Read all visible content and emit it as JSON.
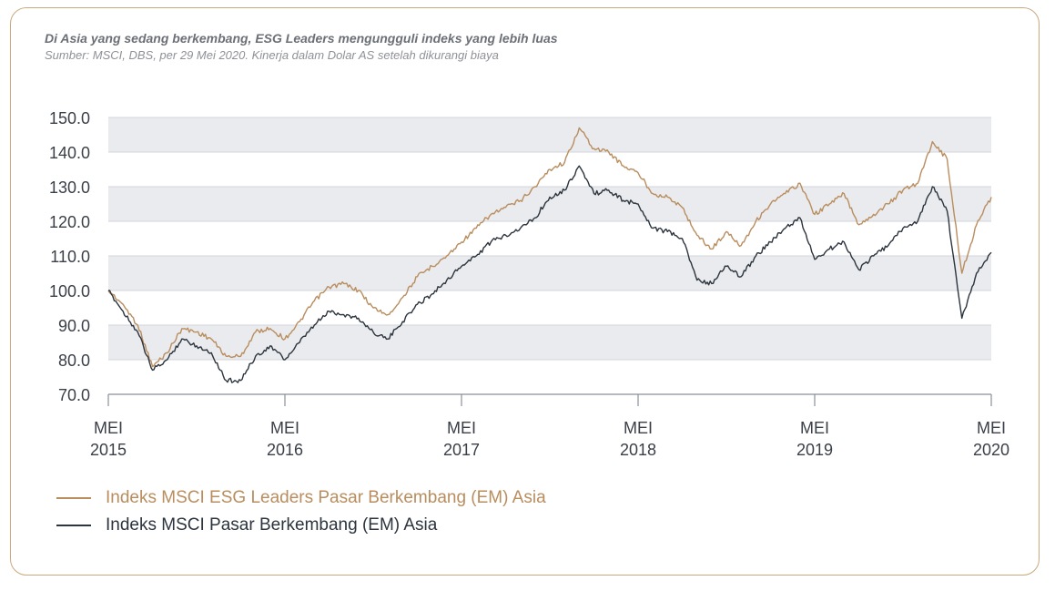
{
  "chart_data": {
    "type": "line",
    "title": "Di Asia yang sedang berkembang, ESG Leaders mengungguli indeks yang lebih luas",
    "subtitle": "Sumber: MSCI, DBS, per 29 Mei 2020. Kinerja dalam Dolar AS setelah dikurangi biaya",
    "xlabel": "",
    "ylabel": "",
    "x_range": [
      "2015-05",
      "2020-05"
    ],
    "ylim": [
      70,
      150
    ],
    "yticks": [
      "150.0",
      "140.0",
      "130.0",
      "120.0",
      "110.0",
      "100.0",
      "90.0",
      "80.0",
      "70.0"
    ],
    "xticks": [
      {
        "month": "MEI",
        "year": "2015"
      },
      {
        "month": "MEI",
        "year": "2016"
      },
      {
        "month": "MEI",
        "year": "2017"
      },
      {
        "month": "MEI",
        "year": "2018"
      },
      {
        "month": "MEI",
        "year": "2019"
      },
      {
        "month": "MEI",
        "year": "2020"
      }
    ],
    "grid": "horizontal bands",
    "legend_position": "bottom-left",
    "series": [
      {
        "name": "Indeks MSCI ESG Leaders Pasar Berkembang (EM) Asia",
        "color": "#b98d5e",
        "points": [
          [
            "2015-05",
            100
          ],
          [
            "2015-06",
            96
          ],
          [
            "2015-07",
            90
          ],
          [
            "2015-08",
            78
          ],
          [
            "2015-09",
            82
          ],
          [
            "2015-10",
            89
          ],
          [
            "2015-11",
            88
          ],
          [
            "2015-12",
            86
          ],
          [
            "2016-01",
            81
          ],
          [
            "2016-02",
            81
          ],
          [
            "2016-03",
            88
          ],
          [
            "2016-04",
            89
          ],
          [
            "2016-05",
            86
          ],
          [
            "2016-06",
            91
          ],
          [
            "2016-07",
            97
          ],
          [
            "2016-08",
            101
          ],
          [
            "2016-09",
            102
          ],
          [
            "2016-10",
            100
          ],
          [
            "2016-11",
            95
          ],
          [
            "2016-12",
            93
          ],
          [
            "2017-01",
            98
          ],
          [
            "2017-02",
            104
          ],
          [
            "2017-03",
            107
          ],
          [
            "2017-04",
            110
          ],
          [
            "2017-05",
            114
          ],
          [
            "2017-06",
            118
          ],
          [
            "2017-07",
            122
          ],
          [
            "2017-08",
            124
          ],
          [
            "2017-09",
            126
          ],
          [
            "2017-10",
            130
          ],
          [
            "2017-11",
            135
          ],
          [
            "2017-12",
            137
          ],
          [
            "2018-01",
            147
          ],
          [
            "2018-02",
            141
          ],
          [
            "2018-03",
            140
          ],
          [
            "2018-04",
            136
          ],
          [
            "2018-05",
            134
          ],
          [
            "2018-06",
            128
          ],
          [
            "2018-07",
            127
          ],
          [
            "2018-08",
            124
          ],
          [
            "2018-09",
            116
          ],
          [
            "2018-10",
            112
          ],
          [
            "2018-11",
            117
          ],
          [
            "2018-12",
            113
          ],
          [
            "2019-01",
            120
          ],
          [
            "2019-02",
            125
          ],
          [
            "2019-03",
            128
          ],
          [
            "2019-04",
            131
          ],
          [
            "2019-05",
            122
          ],
          [
            "2019-06",
            125
          ],
          [
            "2019-07",
            128
          ],
          [
            "2019-08",
            119
          ],
          [
            "2019-09",
            122
          ],
          [
            "2019-10",
            125
          ],
          [
            "2019-11",
            129
          ],
          [
            "2019-12",
            131
          ],
          [
            "2020-01",
            143
          ],
          [
            "2020-02",
            138
          ],
          [
            "2020-03",
            105
          ],
          [
            "2020-04",
            119
          ],
          [
            "2020-05",
            127
          ]
        ]
      },
      {
        "name": "Indeks MSCI Pasar Berkembang (EM) Asia",
        "color": "#2c343d",
        "points": [
          [
            "2015-05",
            100
          ],
          [
            "2015-06",
            94
          ],
          [
            "2015-07",
            88
          ],
          [
            "2015-08",
            77
          ],
          [
            "2015-09",
            80
          ],
          [
            "2015-10",
            86
          ],
          [
            "2015-11",
            84
          ],
          [
            "2015-12",
            82
          ],
          [
            "2016-01",
            74
          ],
          [
            "2016-02",
            74
          ],
          [
            "2016-03",
            81
          ],
          [
            "2016-04",
            84
          ],
          [
            "2016-05",
            80
          ],
          [
            "2016-06",
            85
          ],
          [
            "2016-07",
            90
          ],
          [
            "2016-08",
            94
          ],
          [
            "2016-09",
            93
          ],
          [
            "2016-10",
            92
          ],
          [
            "2016-11",
            88
          ],
          [
            "2016-12",
            86
          ],
          [
            "2017-01",
            91
          ],
          [
            "2017-02",
            96
          ],
          [
            "2017-03",
            99
          ],
          [
            "2017-04",
            103
          ],
          [
            "2017-05",
            107
          ],
          [
            "2017-06",
            110
          ],
          [
            "2017-07",
            114
          ],
          [
            "2017-08",
            116
          ],
          [
            "2017-09",
            118
          ],
          [
            "2017-10",
            121
          ],
          [
            "2017-11",
            127
          ],
          [
            "2017-12",
            129
          ],
          [
            "2018-01",
            136
          ],
          [
            "2018-02",
            128
          ],
          [
            "2018-03",
            129
          ],
          [
            "2018-04",
            126
          ],
          [
            "2018-05",
            125
          ],
          [
            "2018-06",
            118
          ],
          [
            "2018-07",
            117
          ],
          [
            "2018-08",
            115
          ],
          [
            "2018-09",
            103
          ],
          [
            "2018-10",
            102
          ],
          [
            "2018-11",
            107
          ],
          [
            "2018-12",
            104
          ],
          [
            "2019-01",
            110
          ],
          [
            "2019-02",
            114
          ],
          [
            "2019-03",
            118
          ],
          [
            "2019-04",
            121
          ],
          [
            "2019-05",
            109
          ],
          [
            "2019-06",
            112
          ],
          [
            "2019-07",
            114
          ],
          [
            "2019-08",
            106
          ],
          [
            "2019-09",
            110
          ],
          [
            "2019-10",
            113
          ],
          [
            "2019-11",
            118
          ],
          [
            "2019-12",
            120
          ],
          [
            "2020-01",
            130
          ],
          [
            "2020-02",
            123
          ],
          [
            "2020-03",
            92
          ],
          [
            "2020-04",
            105
          ],
          [
            "2020-05",
            111
          ]
        ]
      }
    ]
  }
}
